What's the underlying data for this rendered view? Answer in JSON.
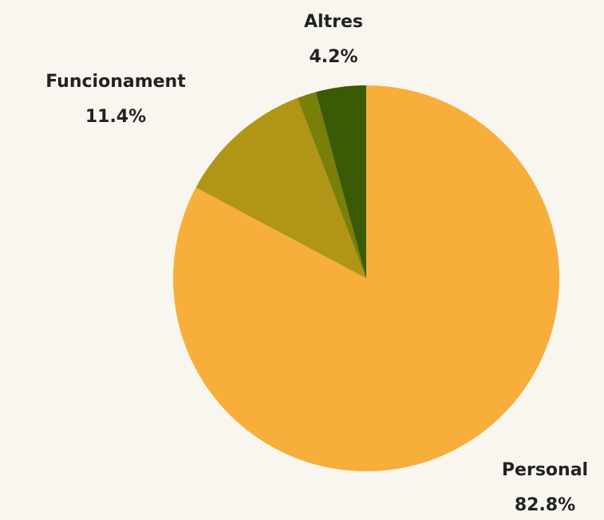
{
  "chart_data": {
    "type": "pie",
    "categories": [
      "Personal",
      "Funcionament",
      null,
      "Altres"
    ],
    "values": [
      82.8,
      11.4,
      1.6,
      4.2
    ],
    "value_labels": [
      "82.8%",
      "11.4%",
      null,
      "4.2%"
    ],
    "colors": [
      "#f7ae3b",
      "#b09516",
      "#7a7f0a",
      "#3a5a06"
    ]
  }
}
